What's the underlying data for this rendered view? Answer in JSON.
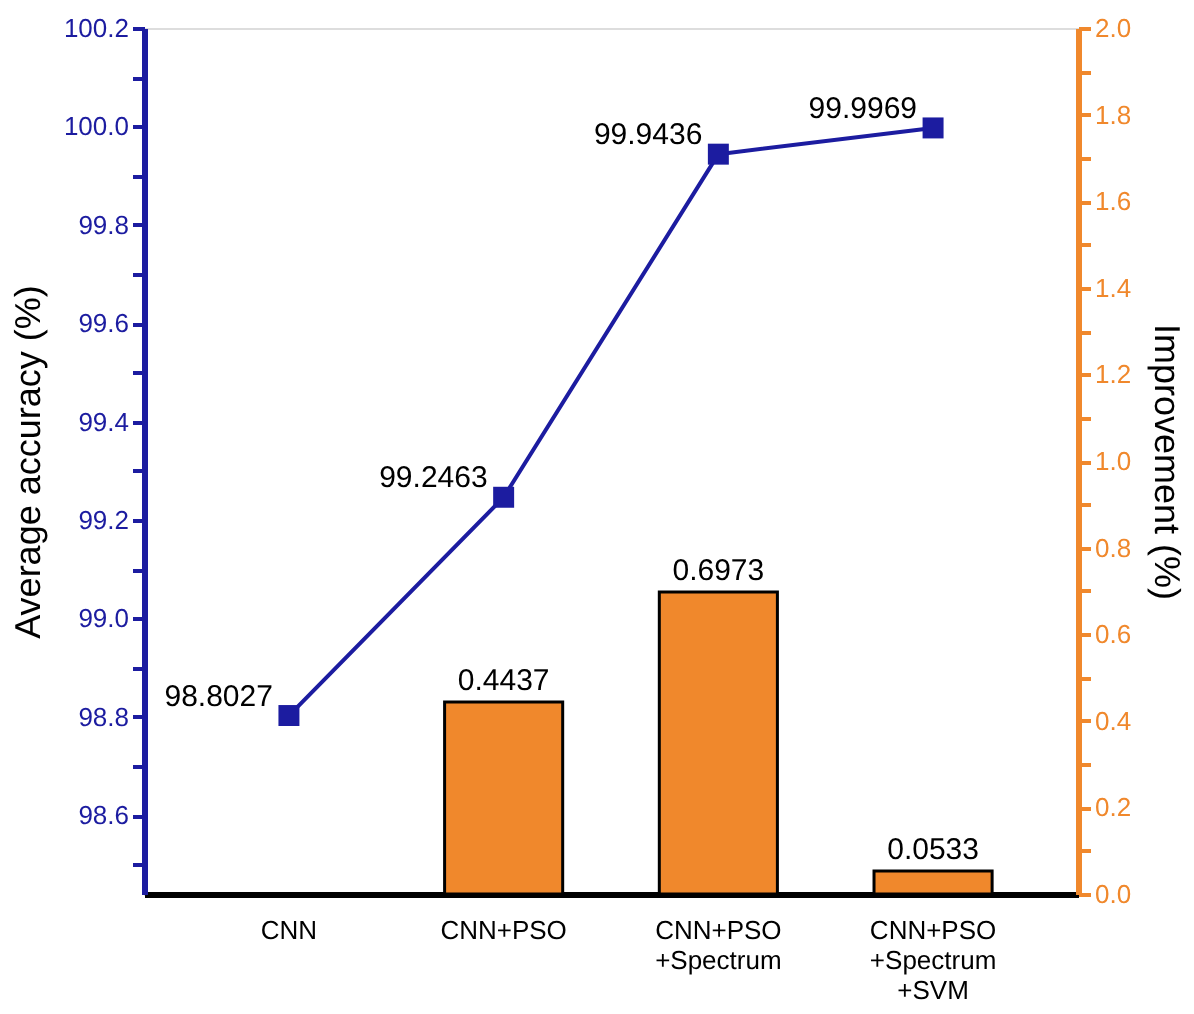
{
  "chart_data": {
    "type": "line",
    "categories": [
      "CNN",
      "CNN+PSO",
      "CNN+PSO\n+Spectrum",
      "CNN+PSO\n+Spectrum\n+SVM"
    ],
    "ylabel": "Average accuracy (%)",
    "y2label": "Improvement (%)",
    "series": [
      {
        "axis": "y",
        "color": "#1c1ca0",
        "marker": "square",
        "values": [
          98.8027,
          99.2463,
          99.9436,
          99.9969
        ]
      },
      {
        "type": "bar",
        "axis": "y2",
        "color": "#f0882c",
        "values": [
          null,
          0.4437,
          0.6973,
          0.0533
        ]
      }
    ],
    "data_labels": true,
    "ylim": [
      98.44,
      100.2
    ],
    "yticks": [
      {
        "value": 98.5,
        "label": null
      },
      98.6,
      {
        "value": 98.7,
        "label": null
      },
      98.8,
      {
        "value": 98.9,
        "label": null
      },
      {
        "value": 99,
        "label": "99.0"
      },
      {
        "value": 99.1,
        "label": null
      },
      99.2,
      {
        "value": 99.3,
        "label": null
      },
      99.4,
      {
        "value": 99.5,
        "label": null
      },
      99.6,
      {
        "value": 99.7,
        "label": null
      },
      99.8,
      {
        "value": 99.9,
        "label": null
      },
      {
        "value": 100,
        "label": "100.0"
      },
      {
        "value": 100.1,
        "label": null
      },
      100.2
    ],
    "y2lim": [
      0.0,
      2.0
    ],
    "y2ticks": [
      {
        "value": 0,
        "label": "0.0"
      },
      {
        "value": 0.1,
        "label": null
      },
      0.2,
      {
        "value": 0.3,
        "label": null
      },
      0.4,
      {
        "value": 0.5,
        "label": null
      },
      0.6,
      {
        "value": 0.7,
        "label": null
      },
      0.8,
      {
        "value": 0.9,
        "label": null
      },
      {
        "value": 1,
        "label": "1.0"
      },
      {
        "value": 1.1,
        "label": null
      },
      1.2,
      {
        "value": 1.3,
        "label": null
      },
      1.4,
      {
        "value": 1.5,
        "label": null
      },
      1.6,
      {
        "value": 1.7,
        "label": null
      },
      1.8,
      {
        "value": 1.9,
        "label": null
      },
      {
        "value": 2,
        "label": "2.0"
      }
    ],
    "grid": false
  }
}
